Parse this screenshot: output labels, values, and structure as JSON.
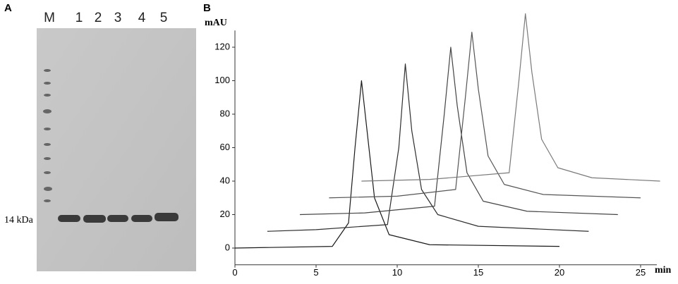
{
  "gel": {
    "panel_label": "A",
    "lanes": [
      "M",
      "1",
      "2",
      "3",
      "4",
      "5"
    ],
    "marker_label": "14 kDa"
  },
  "chart_data": {
    "type": "line",
    "panel_label": "B",
    "y_label": "mAU",
    "x_label": "min",
    "xlim": [
      0,
      26
    ],
    "ylim": [
      -10,
      130
    ],
    "xticks": [
      0,
      5,
      10,
      15,
      20,
      25
    ],
    "yticks": [
      0,
      20,
      40,
      60,
      80,
      100,
      120
    ],
    "series": [
      {
        "color": "#1a1a1a",
        "x": [
          0,
          6,
          7,
          7.4,
          7.8,
          8.2,
          8.6,
          9.5,
          12,
          20
        ],
        "values": [
          0,
          1,
          15,
          60,
          100,
          65,
          30,
          8,
          2,
          1
        ]
      },
      {
        "color": "#2e2e2e",
        "x": [
          2,
          5,
          9.4,
          10.1,
          10.5,
          10.9,
          11.5,
          12.5,
          15,
          21.8
        ],
        "values": [
          10,
          11,
          14,
          60,
          110,
          70,
          35,
          20,
          13,
          10
        ]
      },
      {
        "color": "#444444",
        "x": [
          4,
          8,
          12.3,
          12.9,
          13.3,
          13.7,
          14.3,
          15.3,
          18,
          23.6
        ],
        "values": [
          20,
          21,
          25,
          80,
          120,
          85,
          45,
          28,
          22,
          20
        ]
      },
      {
        "color": "#555555",
        "x": [
          5.8,
          10,
          13.6,
          14.2,
          14.6,
          15,
          15.6,
          16.6,
          19,
          25
        ],
        "values": [
          30,
          31,
          35,
          90,
          129,
          95,
          55,
          38,
          32,
          30
        ]
      },
      {
        "color": "#7a7a7a",
        "x": [
          7.8,
          12,
          16.9,
          17.5,
          17.9,
          18.3,
          18.9,
          19.9,
          22,
          26.2
        ],
        "values": [
          40,
          41,
          45,
          100,
          140,
          105,
          65,
          48,
          42,
          40
        ]
      }
    ]
  }
}
